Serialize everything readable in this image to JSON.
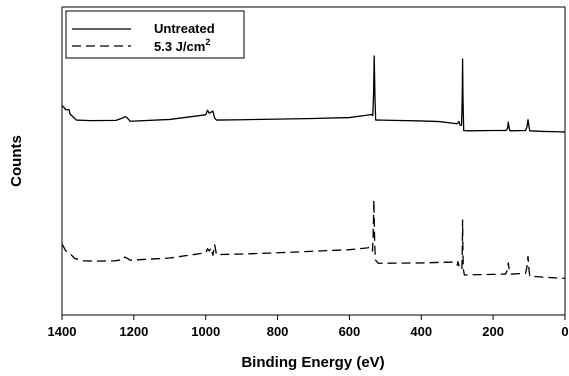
{
  "chart_data": {
    "type": "line",
    "title": "",
    "xlabel": "Binding Energy (eV)",
    "ylabel": "Counts",
    "xlim": [
      1400,
      0
    ],
    "ylim": [
      0,
      100
    ],
    "x_reversed": true,
    "y_ticks_labeled": false,
    "xticks": [
      1400,
      1200,
      1000,
      800,
      600,
      400,
      200,
      0
    ],
    "xtick_labels": [
      "1400",
      "1200",
      "1000",
      "800",
      "600",
      "400",
      "200",
      "0"
    ],
    "grid": false,
    "legend_position": "top-left",
    "legend": {
      "entries": [
        {
          "label": "Untreated",
          "style": "solid"
        },
        {
          "label_main": "5.3 J/cm",
          "label_sup": "2",
          "style": "dashed"
        }
      ]
    },
    "series": [
      {
        "name": "Untreated",
        "style": "solid",
        "color": "#000000",
        "points": [
          [
            1400,
            68
          ],
          [
            1395,
            67.5
          ],
          [
            1390,
            66.7
          ],
          [
            1380,
            66.6
          ],
          [
            1378,
            65.3
          ],
          [
            1370,
            64.4
          ],
          [
            1360,
            63.3
          ],
          [
            1320,
            63.1
          ],
          [
            1250,
            63.2
          ],
          [
            1230,
            64.0
          ],
          [
            1225,
            64.4
          ],
          [
            1220,
            64.2
          ],
          [
            1210,
            62.9
          ],
          [
            1100,
            63.5
          ],
          [
            1000,
            65.0
          ],
          [
            995,
            66.5
          ],
          [
            990,
            65.5
          ],
          [
            985,
            65.9
          ],
          [
            980,
            66.2
          ],
          [
            975,
            63.9
          ],
          [
            970,
            63.3
          ],
          [
            900,
            63.4
          ],
          [
            800,
            63.6
          ],
          [
            700,
            63.8
          ],
          [
            600,
            64.1
          ],
          [
            550,
            64.9
          ],
          [
            540,
            65.1
          ],
          [
            535,
            64.8
          ],
          [
            533,
            71.0
          ],
          [
            531,
            84.1
          ],
          [
            529,
            71.0
          ],
          [
            527,
            63.3
          ],
          [
            520,
            63.3
          ],
          [
            400,
            63.0
          ],
          [
            350,
            62.8
          ],
          [
            300,
            62.1
          ],
          [
            295,
            62.8
          ],
          [
            292,
            61.6
          ],
          [
            288,
            61.6
          ],
          [
            286,
            71.0
          ],
          [
            285,
            83.1
          ],
          [
            284,
            71.0
          ],
          [
            282,
            59.9
          ],
          [
            270,
            59.8
          ],
          [
            200,
            59.9
          ],
          [
            165,
            59.9
          ],
          [
            160,
            60.5
          ],
          [
            158,
            62.6
          ],
          [
            155,
            60.5
          ],
          [
            153,
            59.8
          ],
          [
            110,
            59.9
          ],
          [
            106,
            61.0
          ],
          [
            103,
            63.4
          ],
          [
            100,
            61.0
          ],
          [
            98,
            59.8
          ],
          [
            60,
            59.6
          ],
          [
            20,
            59.5
          ],
          [
            0,
            59.4
          ]
        ]
      },
      {
        "name": "5.3 J/cm2",
        "style": "dashed",
        "color": "#000000",
        "points": [
          [
            1400,
            23
          ],
          [
            1395,
            22.0
          ],
          [
            1390,
            20.9
          ],
          [
            1385,
            20.5
          ],
          [
            1375,
            19.6
          ],
          [
            1365,
            18.4
          ],
          [
            1340,
            17.6
          ],
          [
            1300,
            17.5
          ],
          [
            1250,
            17.6
          ],
          [
            1230,
            18.1
          ],
          [
            1225,
            18.8
          ],
          [
            1220,
            18.5
          ],
          [
            1210,
            17.8
          ],
          [
            1100,
            18.5
          ],
          [
            1000,
            20.2
          ],
          [
            995,
            21.5
          ],
          [
            990,
            20.8
          ],
          [
            985,
            21.8
          ],
          [
            980,
            19.4
          ],
          [
            975,
            22.8
          ],
          [
            970,
            19.6
          ],
          [
            900,
            19.8
          ],
          [
            800,
            20.2
          ],
          [
            700,
            20.7
          ],
          [
            600,
            21.2
          ],
          [
            550,
            21.8
          ],
          [
            540,
            22.0
          ],
          [
            536,
            20.8
          ],
          [
            534,
            25.0
          ],
          [
            532,
            37.4
          ],
          [
            530,
            25.0
          ],
          [
            528,
            17.9
          ],
          [
            520,
            16.8
          ],
          [
            400,
            16.9
          ],
          [
            310,
            17.2
          ],
          [
            300,
            16.2
          ],
          [
            298,
            17.3
          ],
          [
            295,
            16.0
          ],
          [
            290,
            14.8
          ],
          [
            287,
            14.8
          ],
          [
            286,
            20.0
          ],
          [
            285,
            30.8
          ],
          [
            284,
            20.0
          ],
          [
            283,
            14.8
          ],
          [
            280,
            13.0
          ],
          [
            200,
            13.2
          ],
          [
            165,
            13.3
          ],
          [
            160,
            14.8
          ],
          [
            158,
            16.9
          ],
          [
            155,
            14.6
          ],
          [
            150,
            13.3
          ],
          [
            110,
            13.5
          ],
          [
            106,
            15.5
          ],
          [
            103,
            19.0
          ],
          [
            100,
            14.5
          ],
          [
            98,
            12.6
          ],
          [
            60,
            12.3
          ],
          [
            20,
            12.0
          ],
          [
            0,
            11.9
          ]
        ]
      }
    ]
  }
}
